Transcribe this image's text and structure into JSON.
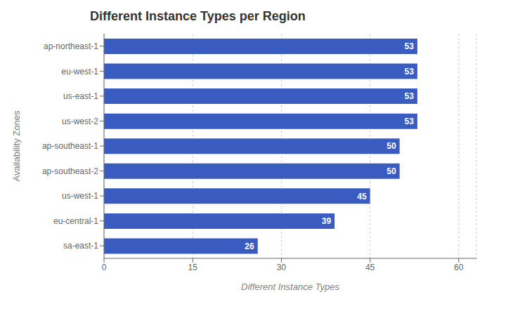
{
  "chart_data": {
    "type": "bar",
    "orientation": "horizontal",
    "title": "Different Instance Types per Region",
    "xlabel": "Different Instance Types",
    "ylabel": "Availability Zones",
    "categories": [
      "ap-northeast-1",
      "eu-west-1",
      "us-east-1",
      "us-west-2",
      "ap-southeast-1",
      "ap-southeast-2",
      "us-west-1",
      "eu-central-1",
      "sa-east-1"
    ],
    "values": [
      53,
      53,
      53,
      53,
      50,
      50,
      45,
      39,
      26
    ],
    "color": "#3a5bbf",
    "xlim": [
      0,
      63
    ],
    "xticks": [
      0,
      15,
      30,
      45,
      60
    ],
    "grid": true,
    "data_labels": true
  }
}
